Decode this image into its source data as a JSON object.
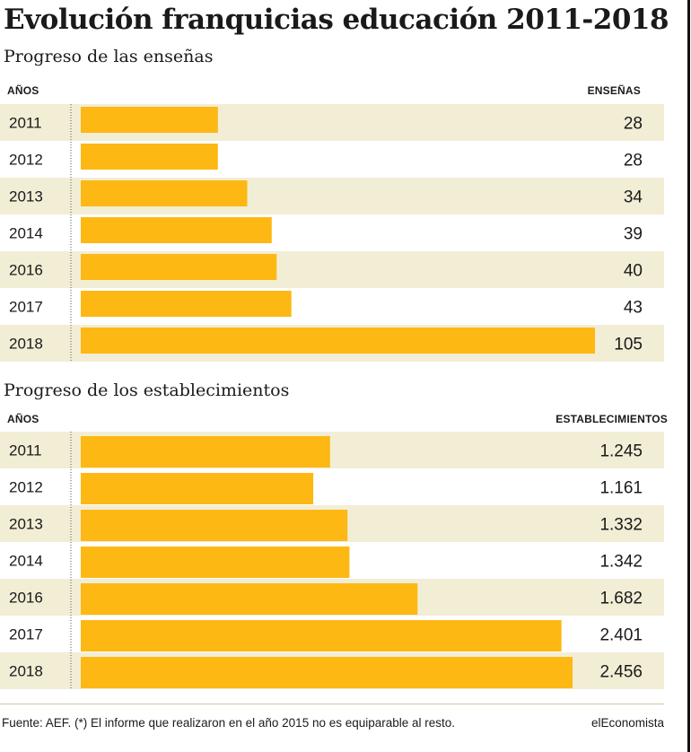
{
  "title": "Evolución franquicias educación 2011-2018",
  "footer": {
    "source": "Fuente: AEF. (*) El informe que realizaron en el año 2015 no es equiparable al resto.",
    "brand": "elEconomista"
  },
  "colors": {
    "bar": "#FDB813",
    "stripe": "#F2EDD5",
    "text": "#1a1a1a"
  },
  "chart_data": [
    {
      "type": "bar",
      "orientation": "horizontal",
      "title": "Progreso de las enseñas",
      "xlabel": "AÑOS",
      "ylabel": "ENSEÑAS",
      "categories": [
        "2011",
        "2012",
        "2013",
        "2014",
        "2016",
        "2017",
        "2018"
      ],
      "values": [
        28,
        28,
        34,
        39,
        40,
        43,
        105
      ],
      "value_labels": [
        "28",
        "28",
        "34",
        "39",
        "40",
        "43",
        "105"
      ],
      "xlim": [
        0,
        105
      ]
    },
    {
      "type": "bar",
      "orientation": "horizontal",
      "title": "Progreso de los establecimientos",
      "xlabel": "AÑOS",
      "ylabel": "ESTABLECIMIENTOS",
      "categories": [
        "2011",
        "2012",
        "2013",
        "2014",
        "2016",
        "2017",
        "2018"
      ],
      "values": [
        1245,
        1161,
        1332,
        1342,
        1682,
        2401,
        2456
      ],
      "value_labels": [
        "1.245",
        "1.161",
        "1.332",
        "1.342",
        "1.682",
        "2.401",
        "2.456"
      ],
      "xlim": [
        0,
        2456
      ]
    }
  ]
}
